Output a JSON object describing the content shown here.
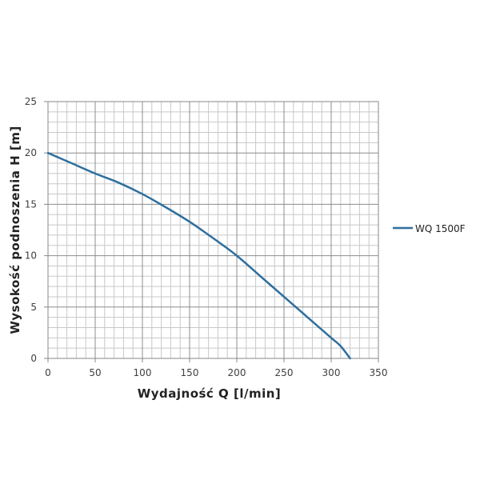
{
  "chart_data": {
    "type": "line",
    "title": "",
    "xlabel": "Wydajność Q [l/min]",
    "ylabel": "Wysokość podnoszenia H [m]",
    "xlim": [
      0,
      350
    ],
    "ylim": [
      0,
      25
    ],
    "x_ticks": [
      0,
      50,
      100,
      150,
      200,
      250,
      300,
      350
    ],
    "y_ticks": [
      0,
      5,
      10,
      15,
      20,
      25
    ],
    "grid": true,
    "minor_grid_x_step": 10,
    "minor_grid_y_step": 1,
    "legend_position": "right",
    "series": [
      {
        "name": "WQ 1500F",
        "color": "#2e6f9e",
        "x": [
          0,
          25,
          50,
          75,
          100,
          125,
          150,
          175,
          200,
          225,
          250,
          275,
          300,
          310,
          320
        ],
        "y": [
          20,
          19,
          18,
          17.1,
          16,
          14.7,
          13.3,
          11.7,
          10,
          8,
          6,
          4,
          2,
          1.2,
          0
        ]
      }
    ]
  }
}
